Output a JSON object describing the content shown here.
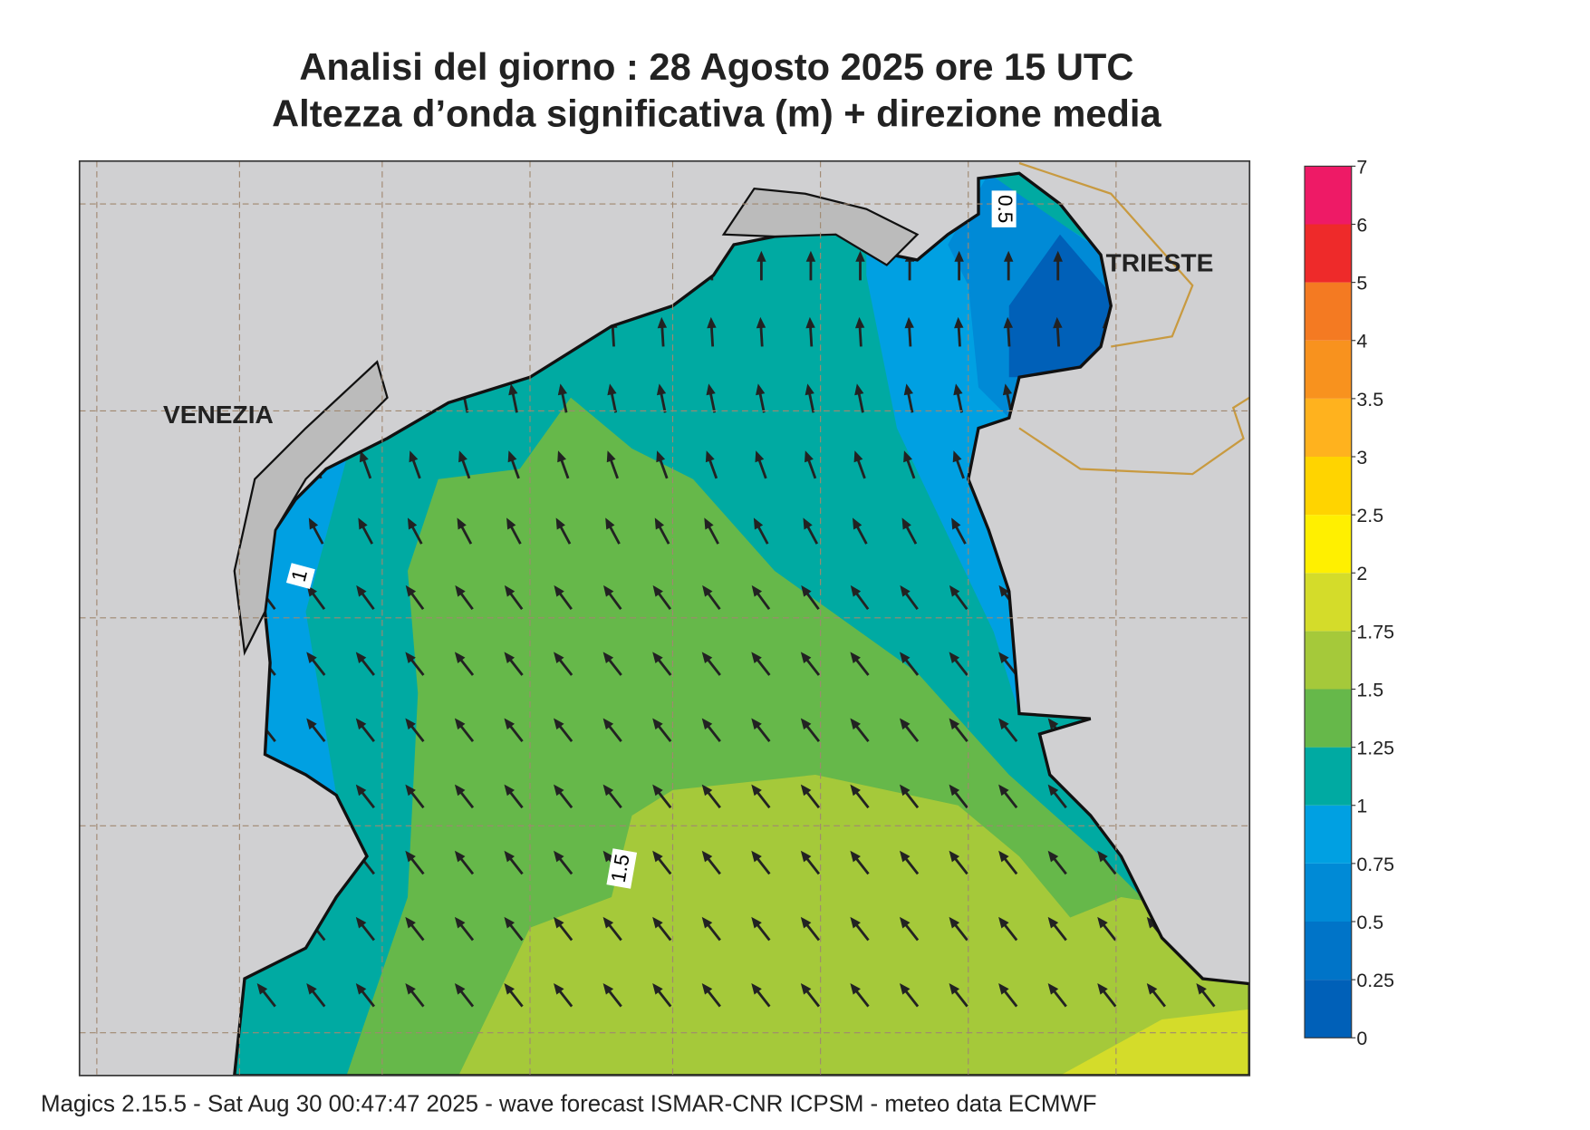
{
  "title": {
    "line1": "Analisi del giorno :  28   Agosto  2025   ore 15 UTC",
    "line2": "Altezza d’onda significativa (m) + direzione media"
  },
  "places": [
    "VENEZIA",
    "TRIESTE"
  ],
  "contour_labels": [
    "0.5",
    "1",
    "1.5"
  ],
  "colorbar": {
    "levels": [
      0,
      0.25,
      0.5,
      0.75,
      1,
      1.25,
      1.5,
      1.75,
      2,
      2.5,
      3,
      3.5,
      4,
      5,
      6,
      7
    ],
    "colors": [
      "#0060b8",
      "#0074c8",
      "#008ad6",
      "#00a0e2",
      "#00aaa2",
      "#66b84a",
      "#a5c93a",
      "#d4dc2a",
      "#fff000",
      "#ffd400",
      "#ffb21e",
      "#f8921e",
      "#f47a22",
      "#ee2a2a",
      "#ee1a66"
    ]
  },
  "footer": "Magics 2.15.5 - Sat Aug 30 00:47:47 2025 - wave forecast  ISMAR-CNR  ICPSM - meteo data   ECMWF"
}
